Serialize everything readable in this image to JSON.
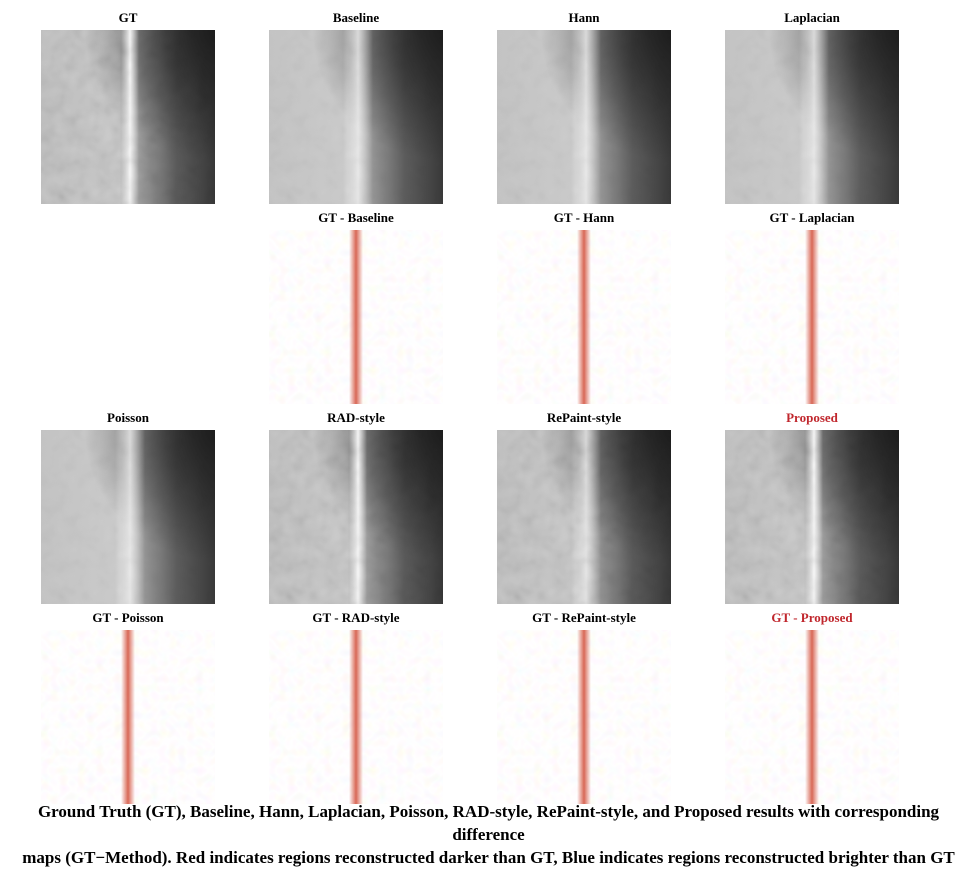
{
  "figure": {
    "panels": [
      {
        "id": "gt",
        "title": "GT",
        "kind": "image",
        "highlight": false
      },
      {
        "id": "baseline",
        "title": "Baseline",
        "kind": "image",
        "highlight": false
      },
      {
        "id": "hann",
        "title": "Hann",
        "kind": "image",
        "highlight": false
      },
      {
        "id": "laplacian",
        "title": "Laplacian",
        "kind": "image",
        "highlight": false
      },
      {
        "id": "diff-baseline",
        "title": "GT - Baseline",
        "kind": "diff",
        "highlight": false
      },
      {
        "id": "diff-hann",
        "title": "GT - Hann",
        "kind": "diff",
        "highlight": false
      },
      {
        "id": "diff-laplacian",
        "title": "GT - Laplacian",
        "kind": "diff",
        "highlight": false
      },
      {
        "id": "poisson",
        "title": "Poisson",
        "kind": "image",
        "highlight": false
      },
      {
        "id": "rad",
        "title": "RAD-style",
        "kind": "image",
        "highlight": false
      },
      {
        "id": "repaint",
        "title": "RePaint-style",
        "kind": "image",
        "highlight": false
      },
      {
        "id": "proposed",
        "title": "Proposed",
        "kind": "image",
        "highlight": true
      },
      {
        "id": "diff-poisson",
        "title": "GT - Poisson",
        "kind": "diff",
        "highlight": false
      },
      {
        "id": "diff-rad",
        "title": "GT - RAD-style",
        "kind": "diff",
        "highlight": false
      },
      {
        "id": "diff-repaint",
        "title": "GT - RePaint-style",
        "kind": "diff",
        "highlight": false
      },
      {
        "id": "diff-proposed",
        "title": "GT - Proposed",
        "kind": "diff",
        "highlight": true
      }
    ],
    "caption_line1": "Ground Truth (GT), Baseline, Hann, Laplacian, Poisson, RAD-style, RePaint-style, and Proposed results with corresponding difference",
    "caption_line2": "maps (GT−Method). Red indicates regions reconstructed darker than GT, Blue indicates regions reconstructed brighter than GT"
  },
  "colors": {
    "highlight_title": "#c0272d",
    "diff_positive": "#d6604d",
    "diff_negative": "#92c5de"
  }
}
